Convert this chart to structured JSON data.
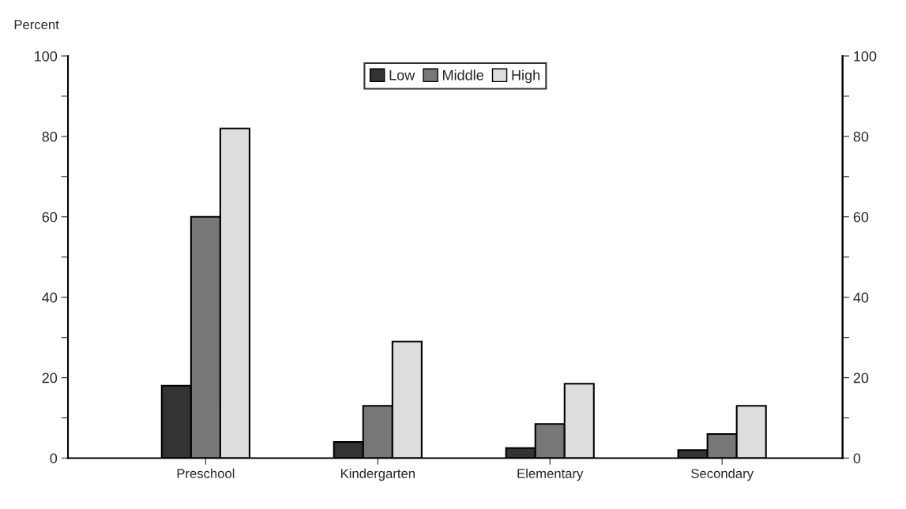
{
  "chart_data": {
    "type": "bar",
    "ylabel": "Percent",
    "categories": [
      "Preschool",
      "Kindergarten",
      "Elementary",
      "Secondary"
    ],
    "series": [
      {
        "name": "Low",
        "color": "#333333",
        "values": [
          18,
          4,
          2.5,
          2
        ]
      },
      {
        "name": "Middle",
        "color": "#777777",
        "values": [
          60,
          13,
          8.5,
          6
        ]
      },
      {
        "name": "High",
        "color": "#dddddd",
        "values": [
          82,
          29,
          18.5,
          13
        ]
      }
    ],
    "ylim": [
      0,
      100
    ],
    "yticks": [
      0,
      {
        "value": 10,
        "label": null
      },
      20,
      {
        "value": 30,
        "label": null
      },
      40,
      {
        "value": 50,
        "label": null
      },
      60,
      {
        "value": 70,
        "label": null
      },
      80,
      {
        "value": 90,
        "label": null
      },
      100
    ],
    "y2lim": [
      0,
      100
    ],
    "y2ticks": [
      0,
      {
        "value": 10,
        "label": null
      },
      20,
      {
        "value": 30,
        "label": null
      },
      40,
      {
        "value": 50,
        "label": null
      },
      60,
      {
        "value": 70,
        "label": null
      },
      80,
      {
        "value": 90,
        "label": null
      },
      100
    ],
    "grid": false,
    "legend": "top"
  }
}
